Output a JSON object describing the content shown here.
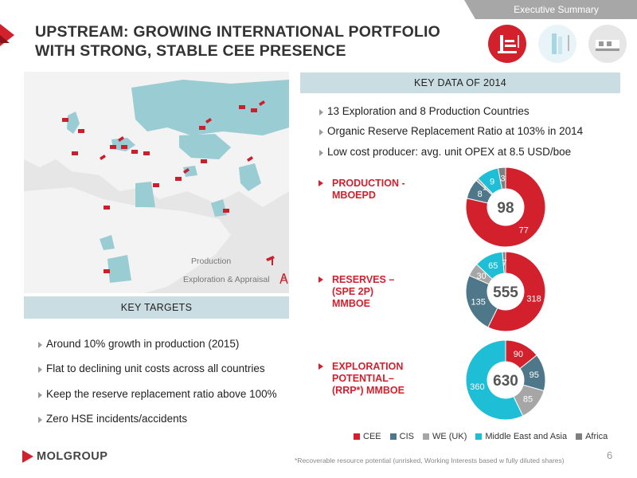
{
  "header": {
    "tab": "Executive Summary",
    "title_line1": "UPSTREAM: GROWING INTERNATIONAL PORTFOLIO",
    "title_line2": "WITH STRONG, STABLE CEE PRESENCE",
    "badges": [
      "upstream-badge",
      "downstream-badge",
      "gas-midstream-badge"
    ]
  },
  "map": {
    "legend_production": "Production",
    "legend_exploration": "Exploration & Appraisal"
  },
  "key_data": {
    "title": "KEY DATA OF 2014",
    "bullets": [
      "13 Exploration and 8 Production Countries",
      "Organic Reserve Replacement Ratio at 103% in 2014",
      "Low cost producer: avg. unit OPEX at 8.5 USD/boe"
    ]
  },
  "key_targets": {
    "title": "KEY TARGETS",
    "bullets": [
      "Around 10% growth in production (2015)",
      "Flat to declining unit costs across all countries",
      "Keep the reserve replacement ratio above 100%",
      "Zero HSE incidents/accidents"
    ]
  },
  "chart_labels": {
    "production": [
      "PRODUCTION -",
      "MBOEPD"
    ],
    "reserves": [
      "RESERVES –",
      "(SPE 2P)",
      "MMBOE"
    ],
    "exploration": [
      "EXPLORATION",
      "POTENTIAL–",
      "(RRP*) MMBOE"
    ]
  },
  "colors": {
    "CEE": "#d3202d",
    "CIS": "#4e7789",
    "WE (UK)": "#a6a6a6",
    "Middle East and Asia": "#1ebfd6",
    "Africa": "#7f7f7f",
    "brand_red": "#d3202d",
    "section_bar": "#c9dde2"
  },
  "chart_data": [
    {
      "type": "pie",
      "title": "PRODUCTION - MBOEPD",
      "total": "98",
      "categories": [
        "CEE",
        "CIS",
        "WE (UK)",
        "Middle East and Asia",
        "Africa"
      ],
      "values": [
        77,
        8,
        1,
        9,
        3
      ]
    },
    {
      "type": "pie",
      "title": "RESERVES – (SPE 2P) MMBOE",
      "total": "555",
      "categories": [
        "CEE",
        "CIS",
        "WE (UK)",
        "Middle East and Asia",
        "Africa"
      ],
      "values": [
        318,
        135,
        30,
        65,
        7
      ]
    },
    {
      "type": "pie",
      "title": "EXPLORATION POTENTIAL– (RRP*) MMBOE",
      "total": "630",
      "categories": [
        "CEE",
        "CIS",
        "WE (UK)",
        "Middle East and Asia",
        "Africa"
      ],
      "values": [
        90,
        95,
        85,
        360,
        0
      ]
    }
  ],
  "legend": [
    "CEE",
    "CIS",
    "WE (UK)",
    "Middle East and Asia",
    "Africa"
  ],
  "footer": {
    "logo": "MOLGROUP",
    "footnote": "*Recoverable resource potential (unrisked, Working Interests based w fully diluted shares)",
    "page": "6"
  }
}
